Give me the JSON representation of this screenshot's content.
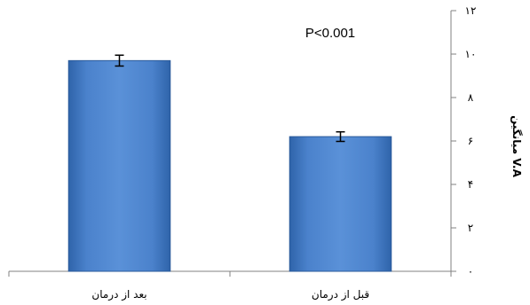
{
  "chart_data": {
    "type": "bar",
    "title": "",
    "annotation": "P<0.001",
    "xlabel": "",
    "ylabel": "میانگین V.A",
    "categories": [
      "بعد از درمان",
      "قبل از درمان"
    ],
    "values": [
      9.7,
      6.2
    ],
    "errors": [
      0.25,
      0.22
    ],
    "ylim": [
      0,
      12
    ],
    "yticks": [
      0,
      2,
      4,
      6,
      8,
      10,
      12
    ],
    "ytick_labels": [
      "۰",
      "۲",
      "۴",
      "۶",
      "۸",
      "۱۰",
      "۱۲"
    ],
    "y_axis_side": "right",
    "grid": false,
    "legend": "none",
    "bar_color": "#4a7ec2",
    "bar_edge_color": "#2a5a9a"
  }
}
